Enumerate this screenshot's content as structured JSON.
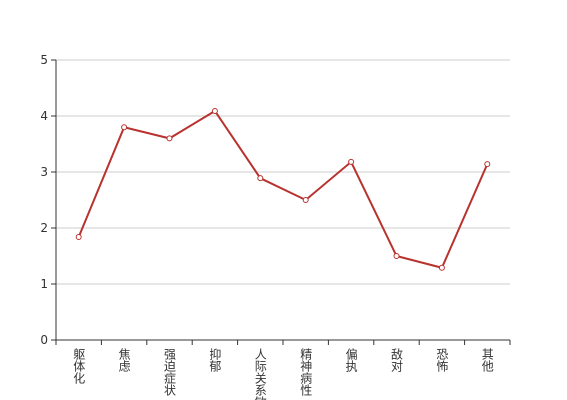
{
  "chart_data": {
    "type": "line",
    "categories": [
      "躯体化",
      "焦虑",
      "强迫症状",
      "抑郁",
      "人际关系敏感",
      "精神病性",
      "偏执",
      "敌对",
      "恐怖",
      "其他"
    ],
    "series": [
      {
        "name": "",
        "color": "#b8322e",
        "values": [
          1.84,
          3.8,
          3.6,
          4.09,
          2.89,
          2.5,
          3.18,
          1.5,
          1.29,
          3.14
        ]
      }
    ],
    "ylim": [
      0,
      5
    ],
    "yticks": [
      0,
      1,
      2,
      3,
      4,
      5
    ],
    "grid": true
  }
}
